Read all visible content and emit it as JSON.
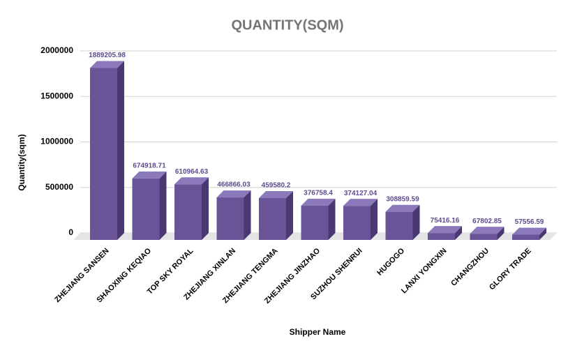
{
  "chart_data": {
    "type": "bar3d",
    "title": "QUANTITY(SQM)",
    "x_label": "Shipper Name",
    "y_label": "Quantity(sqm)",
    "categories": [
      "ZHEJIANG SANSEN",
      "SHAOXING KEQIAO",
      "TOP SKY ROYAL",
      "ZHEJIANG XINLAN",
      "ZHEJIANG TENGMA",
      "ZHEJIANG JINZHAO",
      "SUZHOU SHENRUI",
      "HUGOGO",
      "LANXI YONGXIN",
      "CHANGZHOU",
      "GLORY TRADE"
    ],
    "values": [
      1889205.98,
      674918.71,
      610964.63,
      466866.03,
      459580.2,
      376758.4,
      374127.04,
      308859.59,
      75416.16,
      67802.85,
      57556.59
    ],
    "color": "#6a5498",
    "ylim": [
      0,
      2000000
    ],
    "yticks": [
      0,
      500000,
      1000000,
      1500000,
      2000000
    ],
    "grid": true
  }
}
